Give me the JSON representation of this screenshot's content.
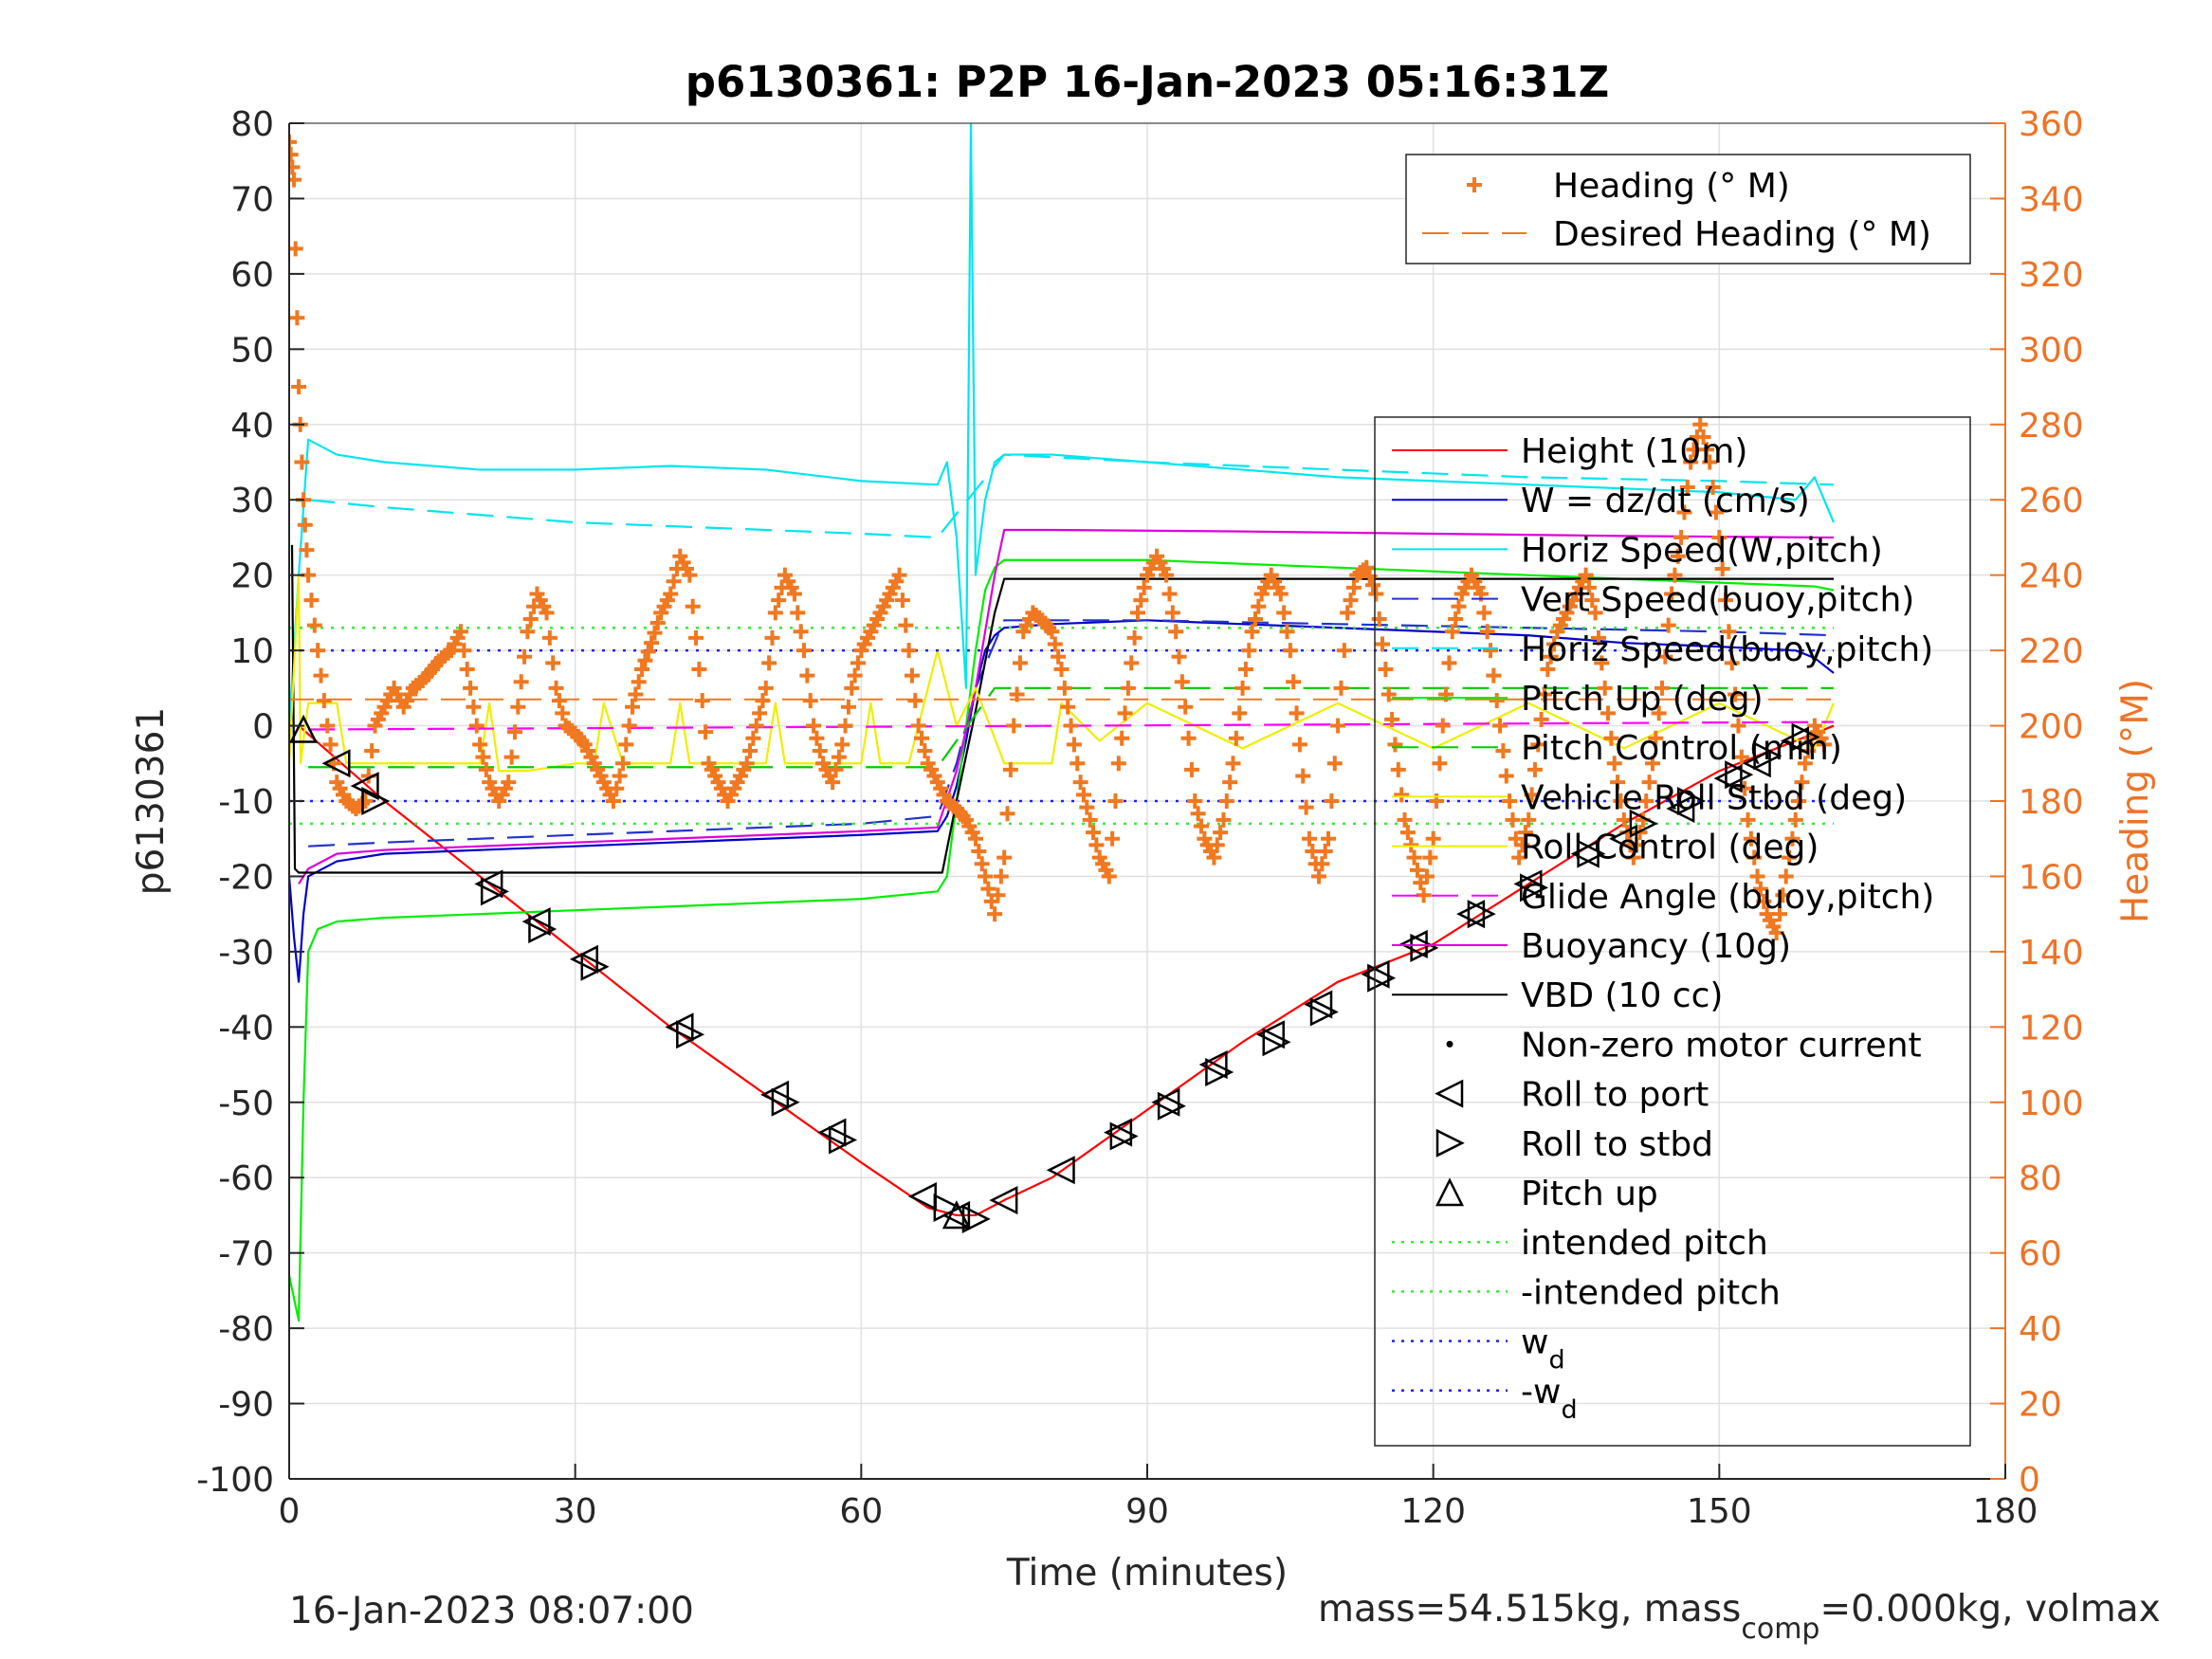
{
  "chart_data": {
    "type": "line",
    "title": "p6130361: P2P 16-Jan-2023 05:16:31Z",
    "xlabel": "Time (minutes)",
    "ylabel": "p6130361",
    "ylabel_right": "Heading (°M)",
    "xlim": [
      0,
      180
    ],
    "ylim": [
      -100,
      80
    ],
    "ylim_right": [
      0,
      360
    ],
    "x_ticks": [
      "0",
      "30",
      "60",
      "90",
      "120",
      "150",
      "180"
    ],
    "y_ticks": [
      "80",
      "70",
      "60",
      "50",
      "40",
      "30",
      "20",
      "10",
      "0",
      "-10",
      "-20",
      "-30",
      "-40",
      "-50",
      "-60",
      "-70",
      "-80",
      "-90",
      "-100"
    ],
    "y_ticks_right": [
      "360",
      "340",
      "320",
      "300",
      "280",
      "260",
      "240",
      "220",
      "200",
      "180",
      "160",
      "140",
      "120",
      "100",
      "80",
      "60",
      "40",
      "20",
      "0"
    ],
    "grid": true,
    "footer_left": "16-Jan-2023 08:07:00",
    "footer_right_parts": [
      "mass=54.515kg, mass",
      "comp",
      "=0.000kg, volmax"
    ],
    "legend_right_axis": [
      {
        "name": "Heading (° M)",
        "color": "#f07820",
        "style": "plus"
      },
      {
        "name": "Desired Heading (° M)",
        "color": "#f07820",
        "style": "dash"
      }
    ],
    "legend_left_axis": [
      {
        "name": "Height (10m)",
        "color": "#ff0000",
        "style": "solid"
      },
      {
        "name": "W = dz/dt (cm/s)",
        "color": "#0000cc",
        "style": "solid"
      },
      {
        "name": "Horiz Speed(W,pitch)",
        "color": "#00e5ee",
        "style": "solid"
      },
      {
        "name": "Vert Speed(buoy,pitch)",
        "color": "#2233cc",
        "style": "dash"
      },
      {
        "name": "Horiz Speed(buoy,pitch)",
        "color": "#00e5ee",
        "style": "dash"
      },
      {
        "name": "Pitch Up (deg)",
        "color": "#00ee00",
        "style": "solid"
      },
      {
        "name": "Pitch Control (mm)",
        "color": "#00cc00",
        "style": "dash"
      },
      {
        "name": "Vehicle Roll Stbd (deg)",
        "color": "#eeee00",
        "style": "solid"
      },
      {
        "name": "Roll Control (deg)",
        "color": "#eeee00",
        "style": "solid"
      },
      {
        "name": "Glide Angle (buoy,pitch)",
        "color": "#ff00ff",
        "style": "dash"
      },
      {
        "name": "Buoyancy (10g)",
        "color": "#dd00dd",
        "style": "solid"
      },
      {
        "name": "VBD (10 cc)",
        "color": "#000000",
        "style": "solid"
      },
      {
        "name": "Non-zero motor current",
        "color": "#000000",
        "style": "dot"
      },
      {
        "name": "Roll to port",
        "color": "#000000",
        "style": "tri-left"
      },
      {
        "name": "Roll to stbd",
        "color": "#000000",
        "style": "tri-right"
      },
      {
        "name": "Pitch up",
        "color": "#000000",
        "style": "tri-up"
      },
      {
        "name": "intended pitch",
        "color": "#33ee33",
        "style": "dotted"
      },
      {
        "name": "-intended pitch",
        "color": "#33ee33",
        "style": "dotted"
      },
      {
        "name": "w",
        "sub": "d",
        "color": "#2222ee",
        "style": "dotted"
      },
      {
        "name": "-w",
        "sub": "d",
        "color": "#2222ee",
        "style": "dotted"
      }
    ],
    "series": [
      {
        "name": "Height (10m)",
        "color": "#ff0000",
        "x": [
          1,
          10,
          20,
          30,
          40,
          50,
          60,
          67,
          70,
          72,
          75,
          80,
          90,
          100,
          110,
          120,
          130,
          140,
          150,
          158,
          162
        ],
        "y": [
          0,
          -10,
          -20,
          -30,
          -40,
          -49,
          -58,
          -64,
          -65,
          -65,
          -63,
          -60,
          -51,
          -42,
          -34,
          -29,
          -21,
          -13,
          -6,
          -2,
          0
        ]
      },
      {
        "name": "W = dz/dt (cm/s)",
        "color": "#0000cc",
        "x": [
          0,
          0.5,
          1,
          1.5,
          2,
          5,
          10,
          20,
          30,
          40,
          50,
          60,
          68,
          69,
          70,
          71,
          72,
          73,
          74,
          75,
          80,
          90,
          100,
          110,
          120,
          130,
          140,
          150,
          158,
          160,
          162
        ],
        "y": [
          -20,
          -28,
          -34,
          -25,
          -20,
          -18,
          -17,
          -16.5,
          -16,
          -15.5,
          -15,
          -14.5,
          -14,
          -12,
          -8,
          -2,
          5,
          10,
          12,
          13,
          13.5,
          14,
          13.5,
          13,
          12.5,
          12,
          11,
          10.5,
          10,
          9,
          7
        ]
      },
      {
        "name": "Horiz Speed(W,pitch)",
        "color": "#00e5ee",
        "x": [
          0,
          1,
          2,
          5,
          10,
          20,
          30,
          40,
          50,
          60,
          68,
          69,
          70,
          71,
          71.5,
          72,
          73,
          74,
          75,
          80,
          90,
          100,
          110,
          120,
          130,
          140,
          150,
          158,
          160,
          162
        ],
        "y": [
          0,
          20,
          38,
          36,
          35,
          34,
          34,
          34.5,
          34,
          32.5,
          32,
          35,
          25,
          5,
          80,
          20,
          30,
          35,
          36,
          36,
          35,
          34,
          33,
          32.5,
          32,
          31.5,
          31,
          30,
          33,
          27
        ]
      },
      {
        "name": "Horiz Speed(buoy,pitch)",
        "color": "#00e5ee",
        "x": [
          2,
          10,
          20,
          30,
          40,
          50,
          60,
          68,
          75,
          90,
          110,
          130,
          150,
          162
        ],
        "y": [
          30,
          29,
          28,
          27,
          26.5,
          26,
          25.5,
          25,
          36,
          35,
          34,
          33,
          32.5,
          32
        ]
      },
      {
        "name": "Vert Speed(buoy,pitch)",
        "color": "#2233cc",
        "x": [
          2,
          10,
          20,
          30,
          40,
          50,
          60,
          68,
          70,
          72,
          75,
          90,
          110,
          130,
          150,
          162
        ],
        "y": [
          -16,
          -15.5,
          -15,
          -14.5,
          -14,
          -13.5,
          -13,
          -12,
          -5,
          5,
          14,
          14,
          13.5,
          13,
          12.5,
          12
        ]
      },
      {
        "name": "Pitch Up (deg)",
        "color": "#00ee00",
        "x": [
          0,
          1,
          1.5,
          2,
          3,
          5,
          10,
          20,
          30,
          40,
          50,
          60,
          68,
          69,
          70,
          71,
          72,
          73,
          74,
          75,
          80,
          90,
          100,
          110,
          120,
          130,
          140,
          150,
          160,
          162
        ],
        "y": [
          -73,
          -79,
          -50,
          -30,
          -27,
          -26,
          -25.5,
          -25,
          -24.5,
          -24,
          -23.5,
          -23,
          -22,
          -20,
          -10,
          0,
          10,
          18,
          21,
          22,
          22,
          22,
          21.5,
          21,
          20.5,
          20,
          19.5,
          19,
          18.5,
          18
        ]
      },
      {
        "name": "Buoyancy (10g)",
        "color": "#dd00dd",
        "x": [
          1,
          2,
          5,
          10,
          20,
          30,
          40,
          50,
          60,
          68,
          70,
          72,
          74,
          75,
          80,
          100,
          120,
          140,
          160,
          162
        ],
        "y": [
          -21,
          -19,
          -17,
          -16.5,
          -16,
          -15.5,
          -15,
          -14.5,
          -14,
          -13.5,
          -6,
          5,
          20,
          26,
          26,
          25.8,
          25.5,
          25.2,
          25,
          25
        ]
      },
      {
        "name": "VBD (10 cc)",
        "color": "#000000",
        "x": [
          0.3,
          0.6,
          1,
          3,
          10,
          30,
          50,
          68.5,
          70,
          72,
          74,
          75,
          80,
          100,
          130,
          158,
          162
        ],
        "y": [
          24,
          -19,
          -19.5,
          -19.5,
          -19.5,
          -19.5,
          -19.5,
          -19.5,
          -10,
          2,
          15,
          19.5,
          19.5,
          19.5,
          19.5,
          19.5,
          19.5
        ]
      },
      {
        "name": "Roll Control (deg)",
        "color": "#eeee00",
        "x": [
          0,
          1,
          1.2,
          2,
          3,
          5,
          6,
          8,
          10,
          12,
          20,
          21,
          22,
          25,
          30,
          32,
          33,
          35,
          40,
          41,
          42,
          50,
          51,
          52,
          55,
          60,
          61,
          62,
          65,
          68,
          70,
          72,
          75,
          80,
          81,
          85,
          90,
          100,
          110,
          120,
          130,
          140,
          150,
          160,
          162
        ],
        "y": [
          -5,
          20,
          -5,
          3,
          3,
          3,
          -5,
          -5,
          -5,
          -5,
          -5,
          3,
          -6,
          -6,
          -5,
          -5,
          3,
          -5,
          -5,
          3,
          -5,
          -5,
          3,
          -5,
          -5,
          -5,
          3,
          -5,
          -5,
          10,
          0,
          5,
          -5,
          -5,
          3,
          -2,
          3,
          -3,
          3,
          -3,
          3,
          -3,
          3,
          -3,
          3
        ]
      },
      {
        "name": "intended pitch",
        "color": "#33ee33",
        "x": [
          0,
          162
        ],
        "y": [
          13,
          13
        ]
      },
      {
        "name": "-intended pitch",
        "color": "#33ee33",
        "x": [
          0,
          162
        ],
        "y": [
          -13,
          -13
        ]
      },
      {
        "name": "wd",
        "color": "#2222ee",
        "x": [
          0,
          162
        ],
        "y": [
          10,
          10
        ]
      },
      {
        "name": "-wd",
        "color": "#2222ee",
        "x": [
          0,
          162
        ],
        "y": [
          -10,
          -10
        ]
      },
      {
        "name": "Glide Angle (buoy,pitch)",
        "color": "#ff00ff",
        "x": [
          2,
          162
        ],
        "y": [
          -0.5,
          0.5
        ]
      },
      {
        "name": "Pitch Control (mm)",
        "color": "#00cc00",
        "x": [
          2,
          68,
          74,
          162
        ],
        "y": [
          -5.5,
          -5.5,
          5,
          5
        ]
      }
    ],
    "heading_series": {
      "name": "Heading (° M)",
      "color": "#f07820",
      "x": [
        0,
        0.5,
        1,
        1.5,
        2,
        3,
        4,
        5,
        6,
        7,
        8,
        9,
        10,
        11,
        12,
        13,
        14,
        15,
        16,
        17,
        18,
        19,
        20,
        21,
        22,
        23,
        24,
        25,
        26,
        27,
        28,
        29,
        30,
        31,
        32,
        33,
        34,
        35,
        36,
        37,
        38,
        39,
        40,
        41,
        42,
        43,
        44,
        45,
        46,
        47,
        48,
        49,
        50,
        51,
        52,
        53,
        54,
        55,
        56,
        57,
        58,
        59,
        60,
        61,
        62,
        63,
        64,
        65,
        66,
        67,
        68,
        69,
        70,
        71,
        72,
        73,
        74,
        75,
        76,
        77,
        78,
        79,
        80,
        81,
        82,
        83,
        84,
        85,
        86,
        87,
        88,
        89,
        90,
        91,
        92,
        93,
        94,
        95,
        96,
        97,
        98,
        99,
        100,
        101,
        102,
        103,
        104,
        105,
        106,
        107,
        108,
        109,
        110,
        111,
        112,
        113,
        114,
        115,
        116,
        117,
        118,
        119,
        120,
        121,
        122,
        123,
        124,
        125,
        126,
        127,
        128,
        129,
        130,
        131,
        132,
        133,
        134,
        135,
        136,
        137,
        138,
        139,
        140,
        141,
        142,
        143,
        144,
        145,
        146,
        147,
        148,
        149,
        150,
        151,
        152,
        153,
        154,
        155,
        156,
        157,
        158,
        159,
        160,
        161
      ],
      "y": [
        355,
        345,
        290,
        260,
        240,
        220,
        200,
        185,
        180,
        178,
        180,
        200,
        205,
        210,
        205,
        210,
        212,
        215,
        218,
        220,
        225,
        210,
        195,
        185,
        180,
        185,
        205,
        225,
        235,
        230,
        210,
        200,
        198,
        195,
        190,
        185,
        180,
        190,
        205,
        215,
        222,
        230,
        235,
        245,
        240,
        215,
        190,
        185,
        180,
        185,
        190,
        200,
        210,
        230,
        240,
        235,
        220,
        200,
        190,
        185,
        195,
        210,
        220,
        225,
        230,
        235,
        240,
        220,
        200,
        190,
        185,
        180,
        178,
        175,
        170,
        160,
        150,
        165,
        200,
        225,
        230,
        228,
        225,
        215,
        200,
        185,
        175,
        165,
        160,
        190,
        210,
        230,
        240,
        245,
        240,
        225,
        205,
        180,
        170,
        165,
        175,
        190,
        210,
        225,
        235,
        240,
        235,
        220,
        195,
        170,
        160,
        170,
        200,
        230,
        240,
        242,
        235,
        215,
        195,
        175,
        165,
        155,
        170,
        200,
        225,
        235,
        240,
        235,
        220,
        200,
        180,
        165,
        175,
        195,
        215,
        225,
        230,
        235,
        240,
        230,
        210,
        190,
        175,
        165,
        175,
        190,
        210,
        235,
        250,
        270,
        280,
        270,
        250,
        225,
        200,
        175,
        160,
        150,
        145,
        160,
        175,
        190,
        200,
        195
      ]
    },
    "desired_heading": {
      "name": "Desired Heading (° M)",
      "color": "#f07820",
      "x": [
        0,
        162
      ],
      "y": [
        207,
        207
      ]
    },
    "triangles": {
      "roll_to_port": {
        "x": [
          5,
          8,
          21,
          26,
          31,
          41,
          51,
          57,
          66.5,
          70,
          75,
          81,
          87,
          92,
          97,
          103,
          108,
          114,
          118,
          124,
          130,
          136,
          140,
          146,
          151,
          154,
          158
        ],
        "y": [
          -5,
          -8,
          -21,
          -26,
          -31,
          -40,
          -49,
          -54,
          -62.5,
          -65,
          -63,
          -59,
          -54,
          -50,
          -45,
          -41,
          -37,
          -33,
          -29,
          -25,
          -21,
          -17,
          -15,
          -11,
          -7,
          -5,
          -2
        ]
      },
      "roll_to_stbd": {
        "x": [
          9,
          21.5,
          26.5,
          32,
          42,
          52,
          58,
          69,
          72,
          87.5,
          92.5,
          97.5,
          103.5,
          108.5,
          114.5,
          119,
          125,
          130.5,
          136.5,
          142,
          147,
          152,
          155,
          159
        ],
        "y": [
          -10,
          -22,
          -27,
          -32,
          -41,
          -50,
          -55,
          -64,
          -65.5,
          -54.5,
          -50.5,
          -46,
          -42,
          -38,
          -33.5,
          -29.5,
          -25,
          -21.5,
          -17,
          -13,
          -10,
          -6.5,
          -4,
          -1.5
        ]
      },
      "pitch_up": {
        "x": [
          1.5,
          70
        ],
        "y": [
          -0.5,
          -65
        ]
      }
    }
  }
}
